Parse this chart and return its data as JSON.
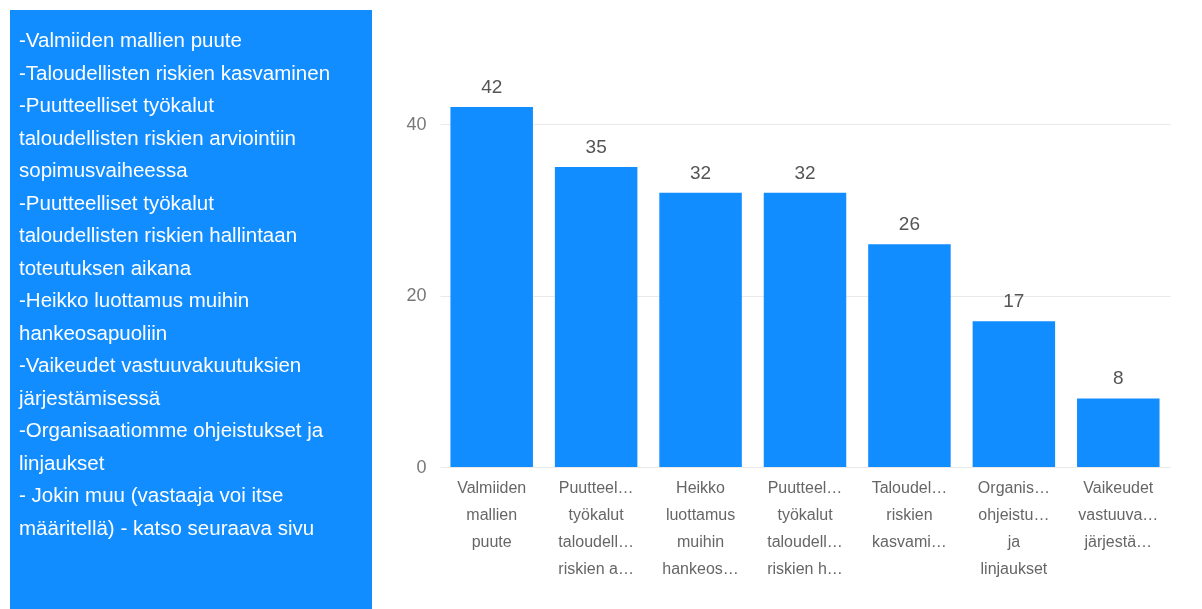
{
  "chart_data": {
    "type": "bar",
    "categories": [
      "Valmiiden\nmallien\npuute",
      "Puutteel…\ntyökalut\ntaloudell…\nriskien a…",
      "Heikko\nluottamus\nmuihin\nhankeos…",
      "Puutteel…\ntyökalut\ntaloudell…\nriskien h…",
      "Taloudel…\nriskien\nkasvami…",
      "Organis…\nohjeistu…\nja\nlinjaukset",
      "Vaikeudet\nvastuuva…\njärjestä…"
    ],
    "values": [
      42,
      35,
      32,
      32,
      26,
      17,
      8
    ],
    "color": "#118dff",
    "ylim": [
      0,
      42
    ],
    "yticks": [
      0,
      20,
      40
    ],
    "grid": "y",
    "data_labels": true,
    "annotations": [
      "-Valmiiden mallien puute",
      "-Taloudellisten riskien kasvaminen",
      "-Puutteelliset työkalut taloudellisten riskien arviointiin sopimusvaiheessa",
      "-Puutteelliset työkalut taloudellisten riskien hallintaan toteutuksen aikana",
      "-Heikko luottamus muihin hankeosapuoliin",
      "-Vaikeudet vastuuvakuutuksien järjestämisessä",
      "-Organisaatiomme ohjeistukset ja linjaukset",
      "- Jokin muu (vastaaja voi itse määritellä) - katso seuraava sivu"
    ]
  }
}
